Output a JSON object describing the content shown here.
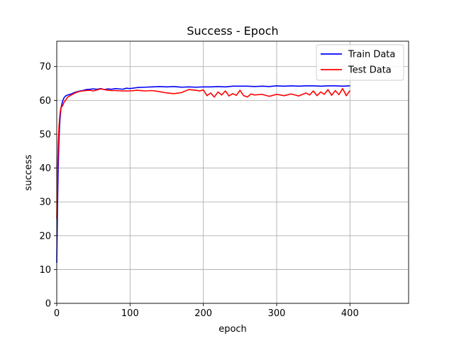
{
  "chart_data": {
    "type": "line",
    "title": "Success - Epoch",
    "xlabel": "epoch",
    "ylabel": "success",
    "xlim": [
      0,
      480
    ],
    "ylim": [
      0,
      77.5
    ],
    "xticks": [
      0,
      100,
      200,
      300,
      400
    ],
    "yticks": [
      0,
      10,
      20,
      30,
      40,
      50,
      60,
      70
    ],
    "grid": true,
    "legend_position": "top-right",
    "series": [
      {
        "name": "Train Data",
        "color": "#0000ff",
        "x": [
          0,
          1,
          2,
          3,
          4,
          5,
          6,
          8,
          10,
          12,
          15,
          20,
          25,
          30,
          35,
          40,
          45,
          50,
          55,
          60,
          65,
          70,
          75,
          80,
          85,
          90,
          95,
          100,
          110,
          120,
          130,
          140,
          150,
          160,
          170,
          180,
          190,
          200,
          210,
          220,
          230,
          240,
          250,
          260,
          270,
          280,
          290,
          300,
          310,
          320,
          330,
          340,
          350,
          360,
          370,
          380,
          390,
          400
        ],
        "y": [
          12,
          28,
          40,
          48,
          53,
          56,
          58,
          59.8,
          60.8,
          61.3,
          61.6,
          61.9,
          62.4,
          62.7,
          62.9,
          63.2,
          63.3,
          63.4,
          63.3,
          63.5,
          63.2,
          63.4,
          63.3,
          63.5,
          63.4,
          63.3,
          63.6,
          63.5,
          63.8,
          63.9,
          64.0,
          64.1,
          64.0,
          64.1,
          63.9,
          64.0,
          63.9,
          64.0,
          64.0,
          64.1,
          64.0,
          64.2,
          64.2,
          64.2,
          64.1,
          64.2,
          64.1,
          64.3,
          64.2,
          64.3,
          64.2,
          64.3,
          64.3,
          64.2,
          64.3,
          64.3,
          64.2,
          64.3
        ]
      },
      {
        "name": "Test Data",
        "color": "#ff0000",
        "x": [
          0,
          1,
          2,
          3,
          4,
          5,
          6,
          8,
          10,
          12,
          15,
          20,
          25,
          30,
          35,
          40,
          45,
          50,
          55,
          60,
          65,
          70,
          75,
          80,
          90,
          100,
          110,
          120,
          130,
          140,
          150,
          160,
          170,
          180,
          190,
          195,
          200,
          205,
          210,
          215,
          220,
          225,
          230,
          235,
          240,
          245,
          250,
          255,
          260,
          265,
          270,
          280,
          290,
          300,
          310,
          320,
          330,
          340,
          345,
          350,
          355,
          360,
          365,
          370,
          375,
          380,
          385,
          390,
          395,
          400
        ],
        "y": [
          25,
          38,
          47,
          52,
          55,
          57,
          58,
          58.4,
          59.5,
          60.0,
          61.0,
          61.6,
          62.2,
          62.6,
          62.8,
          62.9,
          63.0,
          62.8,
          63.1,
          63.4,
          63.2,
          63.0,
          62.9,
          62.9,
          62.8,
          62.8,
          63.0,
          62.8,
          62.9,
          62.6,
          62.2,
          62.0,
          62.3,
          63.2,
          63.0,
          62.8,
          63.1,
          61.4,
          62.2,
          61.0,
          62.5,
          61.6,
          62.8,
          61.3,
          62.0,
          61.5,
          63.0,
          61.4,
          61.0,
          61.9,
          61.6,
          61.8,
          61.2,
          61.8,
          61.4,
          61.9,
          61.3,
          62.2,
          61.6,
          62.8,
          61.4,
          62.5,
          61.8,
          63.2,
          61.5,
          62.9,
          61.7,
          63.5,
          61.4,
          62.9
        ]
      }
    ]
  }
}
